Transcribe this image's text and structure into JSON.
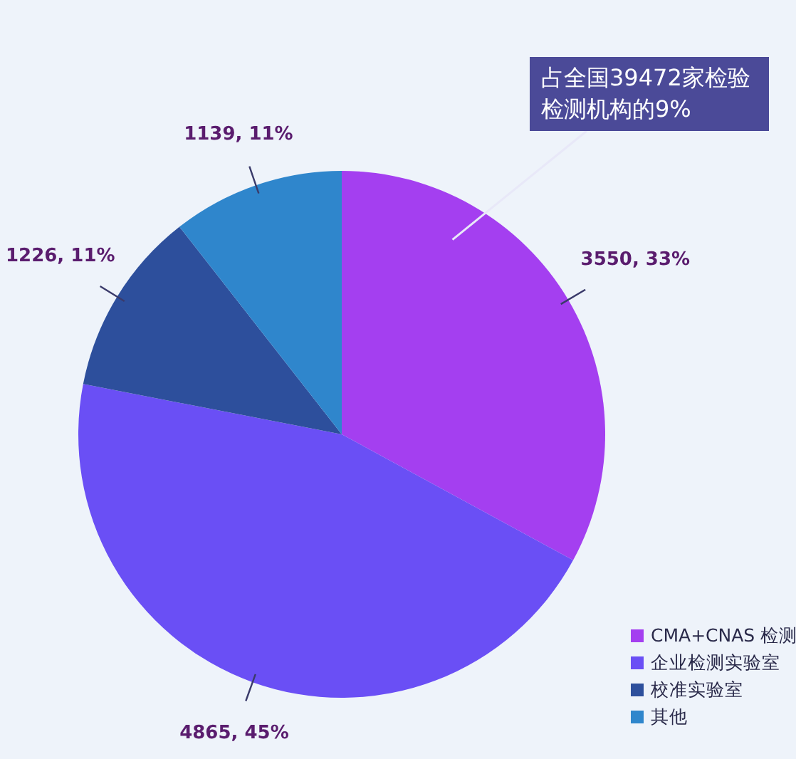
{
  "chart_data": {
    "type": "pie",
    "categories": [
      "CMA+CNAS 检测",
      "企业检测实验室",
      "校准实验室",
      "其他"
    ],
    "values": [
      3550,
      4865,
      1226,
      1139
    ],
    "colors": [
      "#a43ff0",
      "#6a4ff5",
      "#2d4f9c",
      "#2f86cc"
    ],
    "value_labels": [
      "3550, 33%",
      "4865, 45%",
      "1226, 11%",
      "1139, 11%"
    ],
    "annotations": [
      "占全国39472家检验检测机构的9%"
    ],
    "legend": "bottom right"
  }
}
